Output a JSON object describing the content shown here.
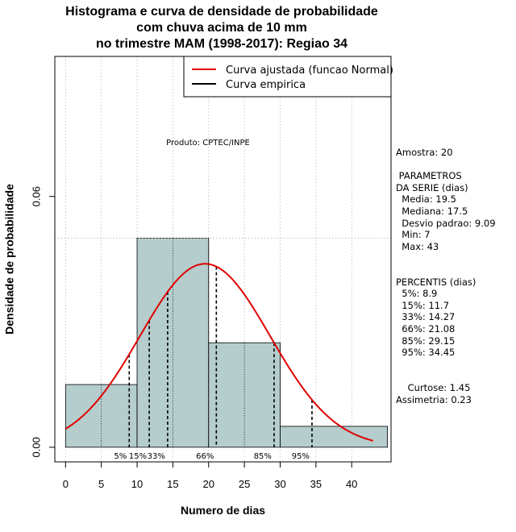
{
  "title_lines": [
    "Histograma e curva de densidade de probabilidade",
    "com chuva acima de 10 mm",
    "no trimestre MAM (1998-2017): Regiao 34"
  ],
  "chart_data": {
    "type": "bar",
    "xlabel": "Numero de dias",
    "ylabel": "Densidade de probabilidade",
    "xlim": [
      -1.5,
      45.5
    ],
    "ylim": [
      -0.0035,
      0.0935
    ],
    "x_ticks": [
      0,
      5,
      10,
      15,
      20,
      25,
      30,
      35,
      40
    ],
    "x_tick_labels": [
      "0",
      "5",
      "10",
      "15",
      "20",
      "25",
      "30",
      "35",
      "40"
    ],
    "y_ticks": [
      0.0,
      0.06
    ],
    "y_tick_labels": [
      "0.00",
      "0.06"
    ],
    "histogram": [
      {
        "bin": [
          0,
          10
        ],
        "density": 0.015
      },
      {
        "bin": [
          10,
          20
        ],
        "density": 0.05
      },
      {
        "bin": [
          20,
          30
        ],
        "density": 0.025
      },
      {
        "bin": [
          30,
          45
        ],
        "density": 0.005
      }
    ],
    "reference_line_y": 0.05,
    "normal_curve": {
      "mean": 19.5,
      "sd": 9.09,
      "x_range": [
        0,
        43
      ]
    },
    "percentiles": [
      {
        "label": "5%",
        "x": 8.9
      },
      {
        "label": "15%",
        "x": 11.7
      },
      {
        "label": "33%",
        "x": 14.27
      },
      {
        "label": "66%",
        "x": 21.08
      },
      {
        "label": "85%",
        "x": 29.15
      },
      {
        "label": "95%",
        "x": 34.45
      }
    ],
    "product_label": "Produto: CPTEC/INPE",
    "legend": {
      "position": "top-right",
      "entries": [
        {
          "label": "Curva ajustada (funcao Normal)",
          "color": "#e00000"
        },
        {
          "label": "Curva empirica",
          "color": "#000000"
        }
      ]
    },
    "colors": {
      "bar_fill": "#b5cdcd",
      "curve": "#e00000",
      "grid": "#bbbbbb"
    }
  },
  "stats_panel": {
    "lines": [
      "Amostra: 20",
      "",
      " PARAMETROS",
      "DA SERIE (dias)",
      "  Media: 19.5",
      "  Mediana: 17.5",
      "  Desvio padrao: 9.09",
      "  Min: 7",
      "  Max: 43",
      "",
      "",
      "PERCENTIS (dias)",
      "  5%: 8.9",
      "  15%: 11.7",
      "  33%: 14.27",
      "  66%: 21.08",
      "  85%: 29.15",
      "  95%: 34.45",
      "",
      "",
      "    Curtose: 1.45",
      "Assimetria: 0.23"
    ]
  }
}
